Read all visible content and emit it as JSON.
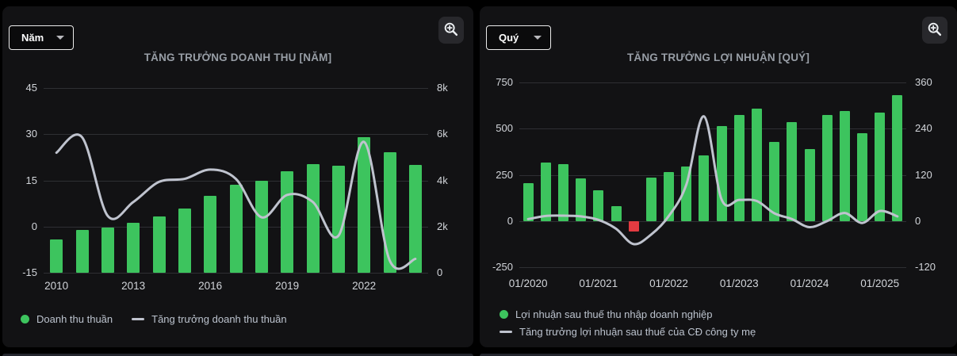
{
  "panels": [
    {
      "name": "revenue-growth",
      "dropdown": {
        "label": "Năm"
      },
      "title": "TĂNG TRƯỞNG DOANH THU [NĂM]",
      "legend": [
        {
          "swatch": "dot",
          "color": "#3dc45e",
          "label": "Doanh thu thuần"
        },
        {
          "swatch": "line",
          "color": "#bfc3ce",
          "label": "Tăng trưởng doanh thu thuần"
        }
      ],
      "chart_data": {
        "type": "bar+line",
        "categories": [
          "2010",
          "2011",
          "2012",
          "2013",
          "2014",
          "2015",
          "2016",
          "2017",
          "2018",
          "2019",
          "2020",
          "2021",
          "2022",
          "2023",
          "2024"
        ],
        "x_tick_labels": [
          {
            "index": 0,
            "label": "2010"
          },
          {
            "index": 3,
            "label": "2013"
          },
          {
            "index": 6,
            "label": "2016"
          },
          {
            "index": 9,
            "label": "2019"
          },
          {
            "index": 12,
            "label": "2022"
          }
        ],
        "left_axis": {
          "ticks": [
            "45",
            "30",
            "15",
            "0",
            "-15"
          ],
          "values": [
            45,
            30,
            15,
            0,
            -15
          ]
        },
        "right_axis": {
          "ticks": [
            "8k",
            "6k",
            "4k",
            "2k",
            "0"
          ],
          "values": [
            8000,
            6000,
            4000,
            2000,
            0
          ]
        },
        "grid": true,
        "legend_position": "bottom-left",
        "series": [
          {
            "name": "Doanh thu thuần",
            "type": "bar",
            "axis": "right",
            "color": "#3dc45e",
            "negative_color": "#e23b41",
            "values": [
              1450,
              1850,
              1950,
              2150,
              2450,
              2800,
              3320,
              3830,
              3970,
              4380,
              4720,
              4620,
              5860,
              5210,
              4660
            ]
          },
          {
            "name": "Tăng trưởng doanh thu thuần",
            "type": "line",
            "axis": "left",
            "color": "#bfc3ce",
            "values": [
              24,
              29,
              3.5,
              8,
              14.5,
              15.5,
              18.5,
              15.5,
              3,
              10.3,
              8,
              -3,
              27.5,
              -11,
              -10.5
            ]
          }
        ]
      }
    },
    {
      "name": "profit-growth",
      "dropdown": {
        "label": "Quý"
      },
      "title": "TĂNG TRƯỞNG LỢI NHUẬN [QUÝ]",
      "legend": [
        {
          "swatch": "dot",
          "color": "#3dc45e",
          "label": "Lợi nhuận sau thuế thu nhập doanh nghiệp"
        },
        {
          "swatch": "line",
          "color": "#bfc3ce",
          "label": "Tăng trưởng lợi nhuận sau thuế của CĐ công ty mẹ"
        }
      ],
      "chart_data": {
        "type": "bar+line",
        "categories": [
          "Q1/2020",
          "Q2/2020",
          "Q3/2020",
          "Q4/2020",
          "Q1/2021",
          "Q2/2021",
          "Q3/2021",
          "Q4/2021",
          "Q1/2022",
          "Q2/2022",
          "Q3/2022",
          "Q4/2022",
          "Q1/2023",
          "Q2/2023",
          "Q3/2023",
          "Q4/2023",
          "Q1/2024",
          "Q2/2024",
          "Q3/2024",
          "Q4/2024",
          "Q1/2025",
          "Q2/2025"
        ],
        "x_tick_labels": [
          {
            "index": 0,
            "label": "01/2020"
          },
          {
            "index": 4,
            "label": "01/2021"
          },
          {
            "index": 8,
            "label": "01/2022"
          },
          {
            "index": 12,
            "label": "01/2023"
          },
          {
            "index": 16,
            "label": "01/2024"
          },
          {
            "index": 20,
            "label": "01/2025"
          }
        ],
        "left_axis": {
          "ticks": [
            "750",
            "500",
            "250",
            "0",
            "-250"
          ],
          "values": [
            750,
            500,
            250,
            0,
            -250
          ]
        },
        "right_axis": {
          "ticks": [
            "360",
            "240",
            "120",
            "0",
            "-120"
          ],
          "values": [
            360,
            240,
            120,
            0,
            -120
          ]
        },
        "grid": true,
        "legend_position": "bottom-left",
        "series": [
          {
            "name": "Lợi nhuận sau thuế thu nhập doanh nghiệp",
            "type": "bar",
            "axis": "left",
            "color": "#3dc45e",
            "negative_color": "#e23b41",
            "values": [
              205,
              315,
              310,
              230,
              165,
              80,
              -55,
              235,
              265,
              295,
              355,
              515,
              575,
              610,
              430,
              535,
              390,
              575,
              595,
              475,
              585,
              680
            ]
          },
          {
            "name": "Tăng trưởng lợi nhuận sau thuế của CĐ công ty mẹ",
            "type": "line",
            "axis": "right",
            "color": "#bfc3ce",
            "values": [
              5,
              13,
              14,
              12,
              3,
              -20,
              -60,
              -35,
              13,
              95,
              272,
              56,
              55,
              52,
              20,
              5,
              -16,
              0,
              21,
              -5,
              26,
              12
            ]
          }
        ]
      }
    }
  ],
  "colors": {
    "page_background": "#000000",
    "panel_background": "#121214",
    "gridline": "#2e2f33",
    "axis_label": "#d2d5da",
    "title": "#989ea6",
    "bar_positive": "#3dc45e",
    "bar_negative": "#e23b41",
    "growth_line": "#bfc3ce"
  }
}
